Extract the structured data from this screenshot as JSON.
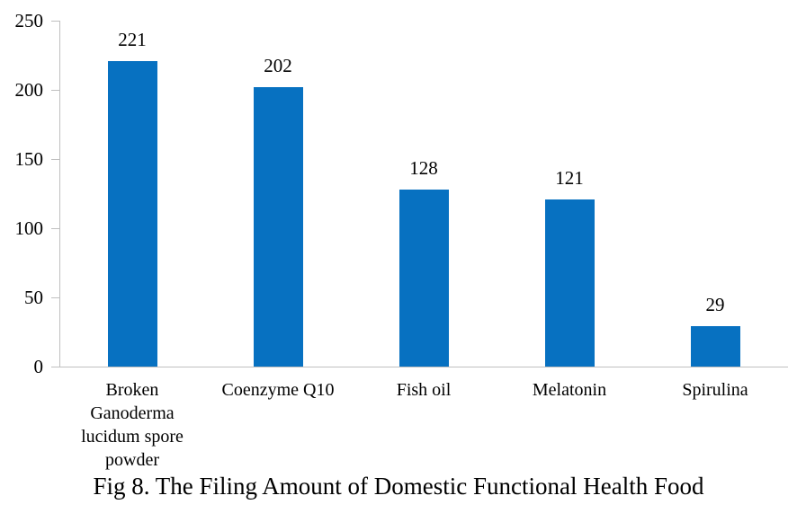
{
  "chart_data": {
    "type": "bar",
    "title": "Fig 8. The Filing Amount of Domestic Functional Health Food",
    "categories": [
      "Broken Ganoderma lucidum spore powder",
      "Coenzyme Q10",
      "Fish oil",
      "Melatonin",
      "Spirulina"
    ],
    "values": [
      221,
      202,
      128,
      121,
      29
    ],
    "data_labels": [
      "221",
      "202",
      "128",
      "121",
      "29"
    ],
    "ylabel": "",
    "xlabel": "",
    "ylim": [
      0,
      250
    ],
    "yticks": [
      0,
      50,
      100,
      150,
      200,
      250
    ],
    "ytick_labels": [
      "0",
      "50",
      "100",
      "150",
      "200",
      "250"
    ],
    "grid": false,
    "legend": false,
    "bar_color": "#0771C1",
    "axis_color": "#BFBFBF",
    "text_color": "#000000"
  }
}
